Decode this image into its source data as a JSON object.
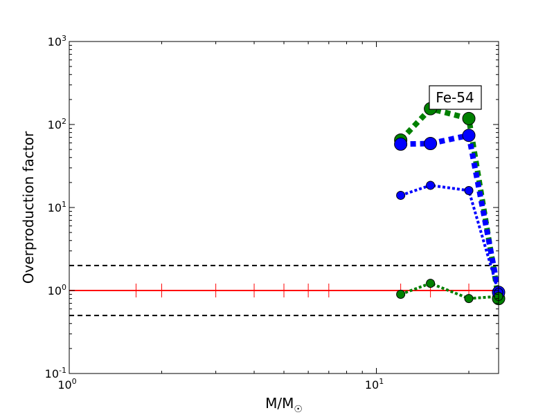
{
  "chart_data": {
    "type": "line",
    "title": "",
    "xlabel": "M/M☉",
    "ylabel": "Overproduction factor",
    "xscale": "log",
    "yscale": "log",
    "xlim": [
      1,
      25
    ],
    "ylim": [
      0.1,
      1000
    ],
    "x_tick_labels": [
      {
        "value": 1,
        "base": "10",
        "exp": "0"
      },
      {
        "value": 10,
        "base": "10",
        "exp": "1"
      }
    ],
    "y_tick_labels": [
      {
        "value": 0.1,
        "base": "10",
        "exp": "-1"
      },
      {
        "value": 1,
        "base": "10",
        "exp": "0"
      },
      {
        "value": 10,
        "base": "10",
        "exp": "1"
      },
      {
        "value": 100,
        "base": "10",
        "exp": "2"
      },
      {
        "value": 1000,
        "base": "10",
        "exp": "3"
      }
    ],
    "annotation": "Fe-54",
    "reference_lines": [
      {
        "y": 2,
        "color": "#000000",
        "style": "dashed"
      },
      {
        "y": 1,
        "color": "#000000",
        "style": "dashed"
      },
      {
        "y": 0.5,
        "color": "#000000",
        "style": "dashed"
      }
    ],
    "series": [
      {
        "color": "#ff0000",
        "style": "solid",
        "marker": "vline",
        "width": 2,
        "x": [
          1.0,
          1.65,
          2.0,
          3.0,
          4.0,
          5.0,
          6.0,
          7.0,
          12.0,
          15.0,
          20.0,
          25.0
        ],
        "y": [
          1.0,
          1.0,
          1.0,
          1.0,
          1.0,
          1.0,
          1.0,
          1.0,
          1.0,
          1.0,
          1.0,
          1.0
        ]
      },
      {
        "color": "#008000",
        "style": "dotted",
        "marker": "circle",
        "width": 8,
        "marker_size": 9,
        "x": [
          12,
          15,
          20,
          25
        ],
        "y": [
          65,
          155,
          118,
          0.8
        ]
      },
      {
        "color": "#0000ff",
        "style": "dotted",
        "marker": "circle",
        "width": 8,
        "marker_size": 9,
        "x": [
          12,
          15,
          20,
          25
        ],
        "y": [
          58,
          59,
          74,
          0.95
        ]
      },
      {
        "color": "#0000ff",
        "style": "dotted",
        "marker": "circle",
        "width": 4,
        "marker_size": 6,
        "x": [
          12,
          15,
          20,
          25
        ],
        "y": [
          14,
          18.5,
          16,
          0.95
        ]
      },
      {
        "color": "#008000",
        "style": "dotted",
        "marker": "circle",
        "width": 4,
        "marker_size": 6,
        "x": [
          12,
          15,
          20,
          25
        ],
        "y": [
          0.9,
          1.22,
          0.8,
          0.85
        ]
      }
    ]
  }
}
